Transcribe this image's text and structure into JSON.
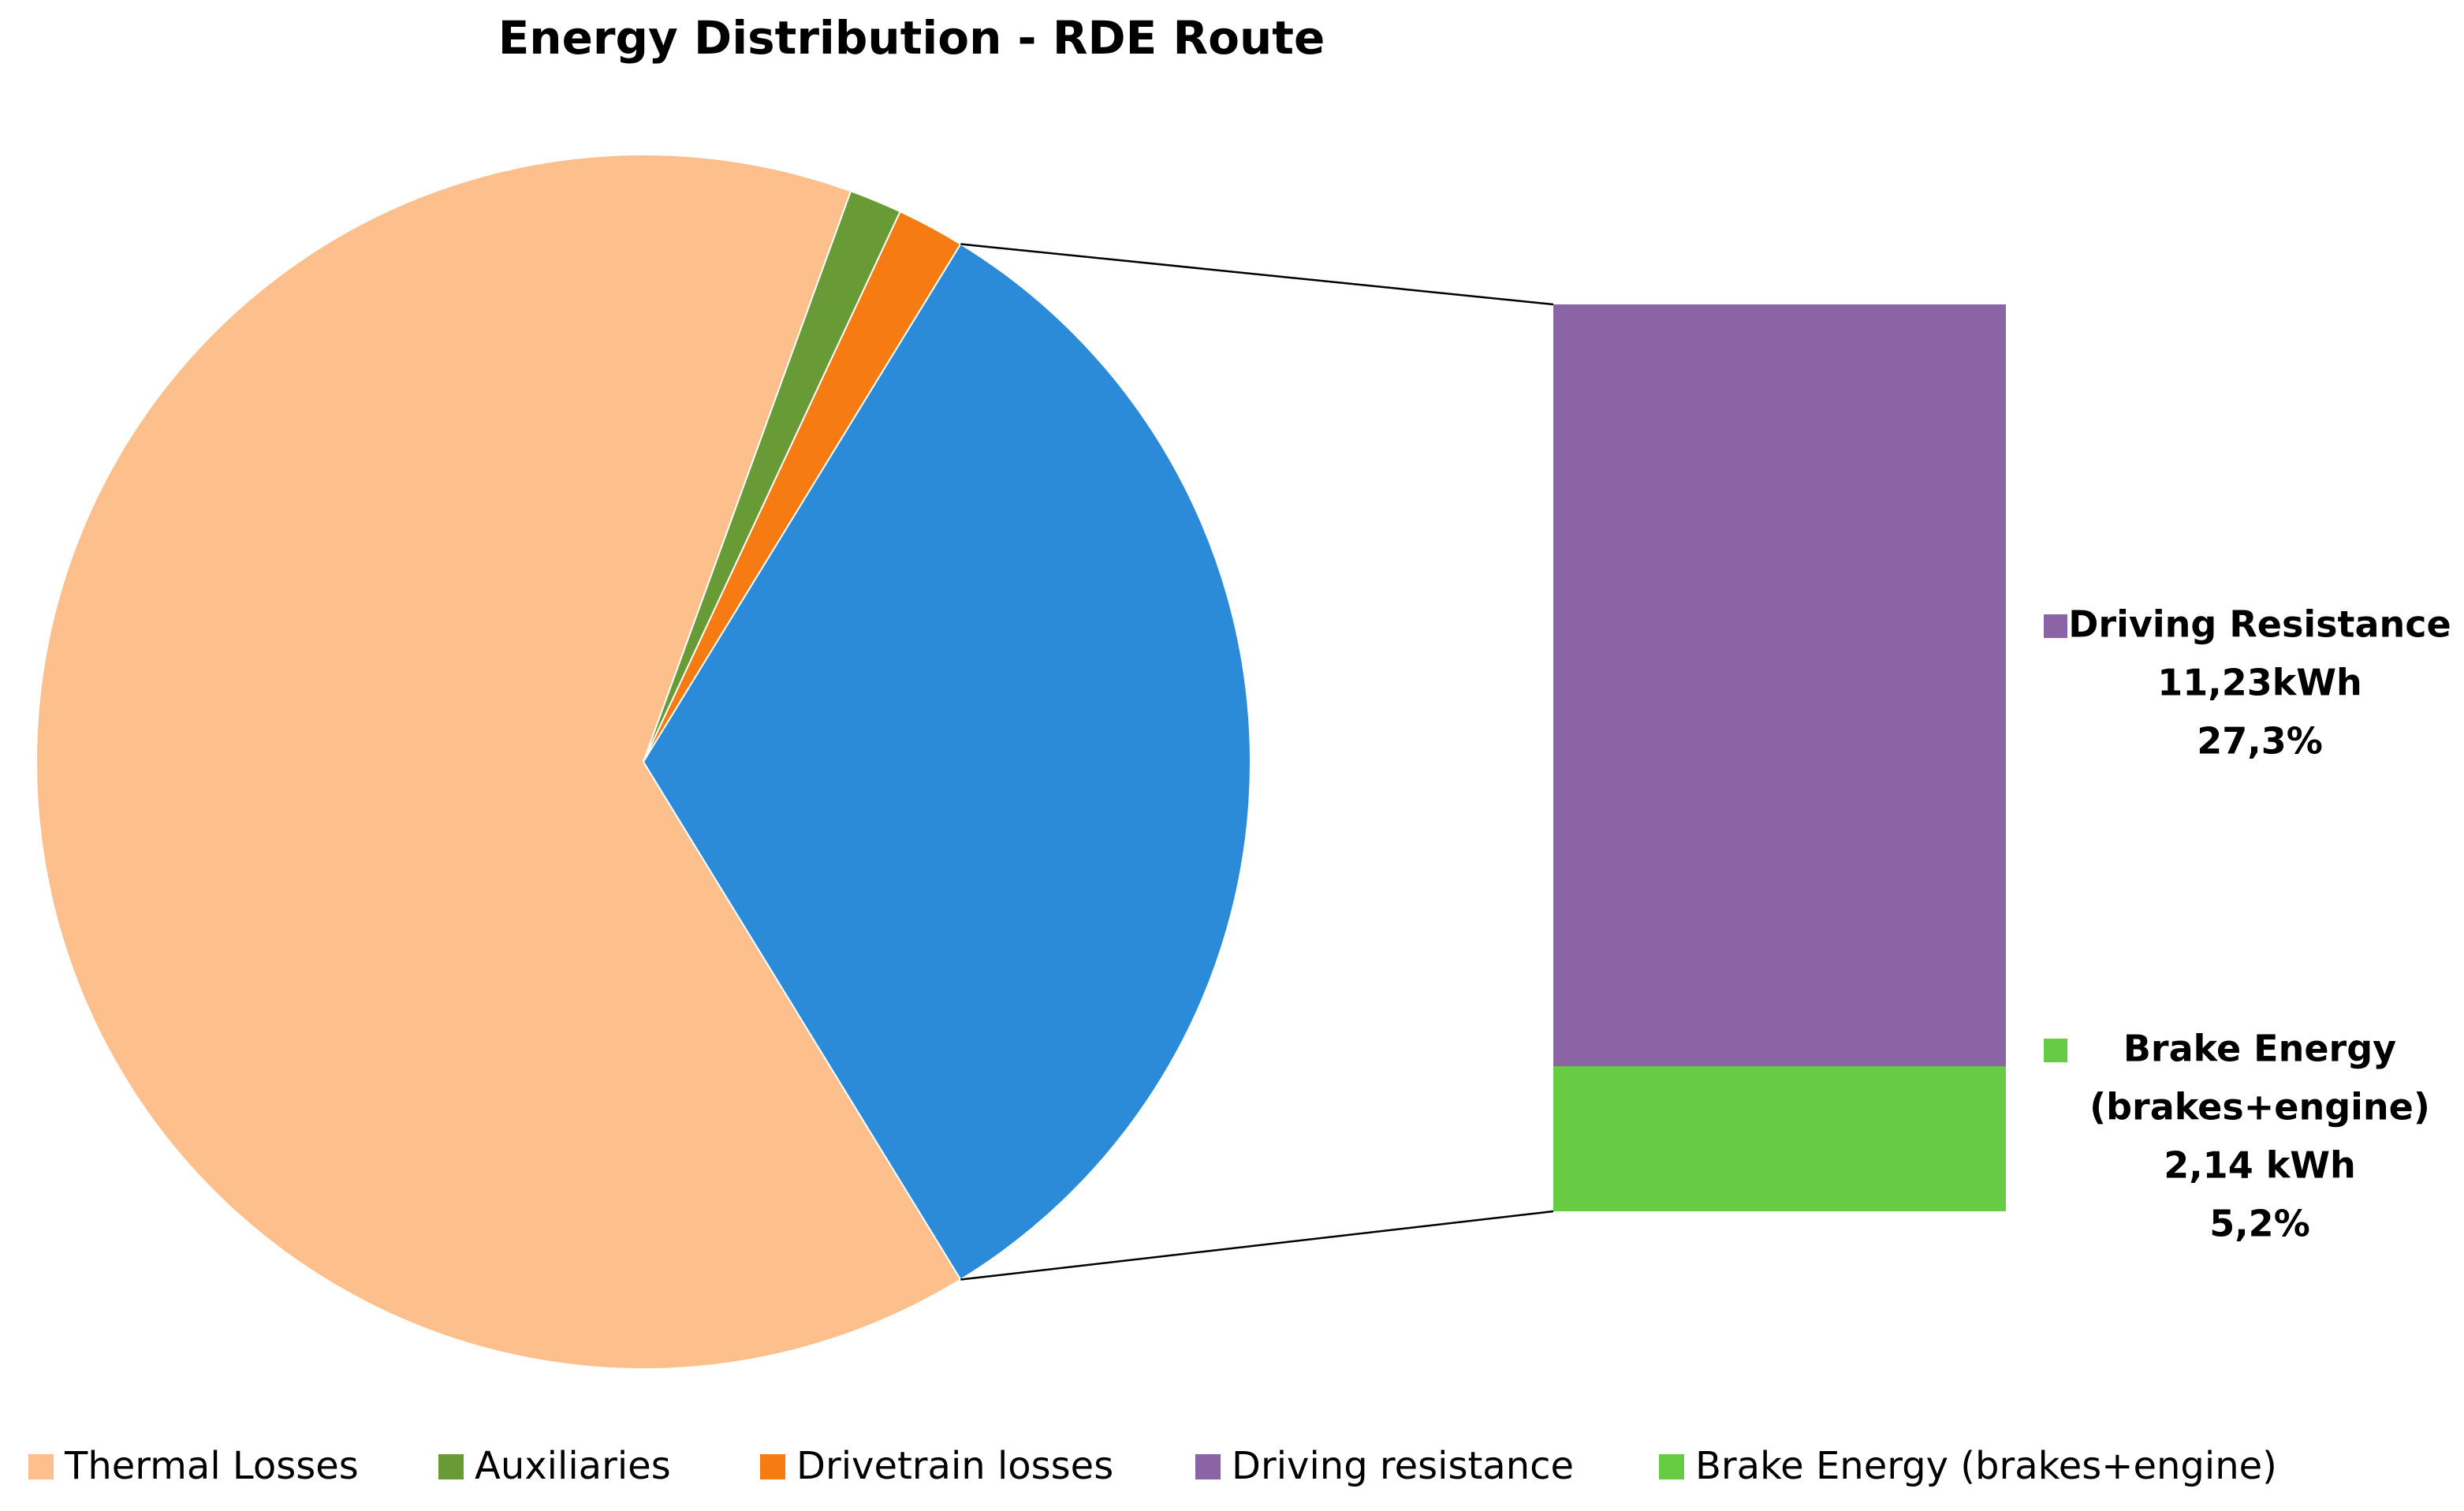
{
  "chart_data": {
    "type": "bar-of-pie",
    "title": "Energy Distribution - RDE Route",
    "categories": [
      "Thermal Losses",
      "Auxiliaries",
      "Drivetrain losses",
      "Driving resistance",
      "Brake Energy (brakes+engine)"
    ],
    "values": [
      64.3,
      1.4,
      1.8,
      27.3,
      5.2
    ],
    "value_labels": [
      null,
      null,
      null,
      "27,3%",
      "5,2%"
    ],
    "energy_labels": [
      null,
      null,
      null,
      "11,23kWh",
      "2,14 kWh"
    ],
    "callout_labels": [
      null,
      null,
      null,
      [
        "Driving Resistance"
      ],
      [
        "Brake Energy",
        "(brakes+engine)"
      ]
    ],
    "colors": [
      "#fdbf8c",
      "#689a35",
      "#f57b12",
      "#8b64a6",
      "#67cc44"
    ],
    "other_color": "#2b8bd8",
    "secondary_plot_size": 2,
    "legend": "bottom"
  }
}
